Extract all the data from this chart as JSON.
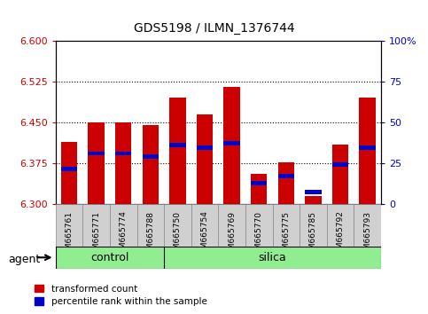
{
  "title": "GDS5198 / ILMN_1376744",
  "samples": [
    "GSM665761",
    "GSM665771",
    "GSM665774",
    "GSM665788",
    "GSM665750",
    "GSM665754",
    "GSM665769",
    "GSM665770",
    "GSM665775",
    "GSM665785",
    "GSM665792",
    "GSM665793"
  ],
  "groups": [
    "control",
    "control",
    "control",
    "control",
    "silica",
    "silica",
    "silica",
    "silica",
    "silica",
    "silica",
    "silica",
    "silica"
  ],
  "transformed_count": [
    6.415,
    6.45,
    6.45,
    6.445,
    6.495,
    6.465,
    6.515,
    6.355,
    6.377,
    6.315,
    6.41,
    6.495
  ],
  "percentile_rank": [
    6.365,
    6.393,
    6.393,
    6.388,
    6.408,
    6.403,
    6.412,
    6.338,
    6.352,
    6.322,
    6.372,
    6.403
  ],
  "ymin": 6.3,
  "ymax": 6.6,
  "yticks": [
    6.3,
    6.375,
    6.45,
    6.525,
    6.6
  ],
  "right_yticks": [
    0,
    25,
    50,
    75,
    100
  ],
  "bar_color": "#cc0000",
  "blue_color": "#0000cc",
  "tick_color_left": "#cc0000",
  "tick_color_right": "#0000cc",
  "group_color": "#90ee90",
  "bar_width": 0.6,
  "n_control": 4,
  "n_silica": 8
}
